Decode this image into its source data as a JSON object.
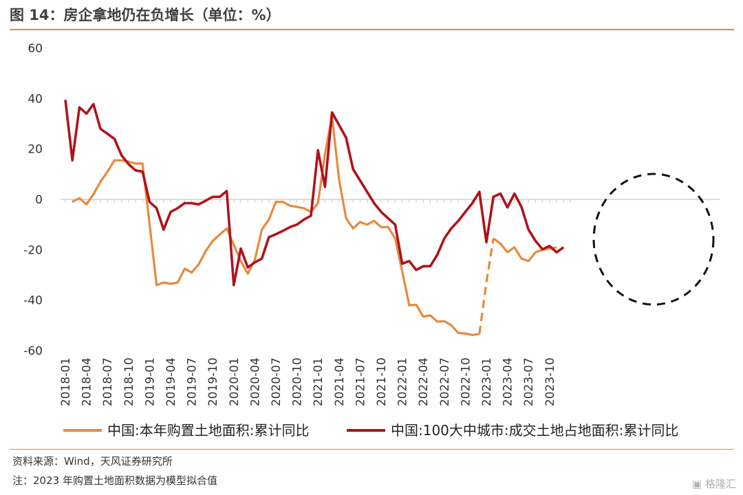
{
  "header": {
    "title": "图 14：房企拿地仍在负增长（单位：%）"
  },
  "footer": {
    "source": "资料来源：Wind，天风证券研究所",
    "note": "注：2023 年购置土地面积数据为模型拟合值"
  },
  "watermark": {
    "text": "格隆汇"
  },
  "colors": {
    "series1": "#e8893d",
    "series2": "#b0121b",
    "accent": "#e8862e",
    "circle": "#111111"
  },
  "chart_data": {
    "type": "line",
    "title": "",
    "xlabel": "",
    "ylabel": "",
    "ylim": [
      -60,
      60
    ],
    "yticks": [
      60,
      40,
      20,
      0,
      -20,
      -40,
      -60
    ],
    "x_start": "2018-01",
    "x_tick_labels": [
      "2018-01",
      "2018-04",
      "2018-07",
      "2018-10",
      "2019-01",
      "2019-04",
      "2019-07",
      "2019-10",
      "2020-01",
      "2020-04",
      "2020-07",
      "2020-10",
      "2021-01",
      "2021-04",
      "2021-07",
      "2021-10",
      "2022-01",
      "2022-04",
      "2022-07",
      "2022-10",
      "2023-01",
      "2023-04",
      "2023-07",
      "2023-10"
    ],
    "grid": false,
    "legend_position": "bottom",
    "annotation": "dashed circle around 2023 data",
    "series": [
      {
        "name": "中国:本年购置土地面积:累计同比",
        "color": "#e8893d",
        "dashed_segment": [
          "2022-12",
          "2023-02"
        ],
        "points": [
          [
            "2018-02",
            -1
          ],
          [
            "2018-03",
            0.5
          ],
          [
            "2018-04",
            -2
          ],
          [
            "2018-05",
            2
          ],
          [
            "2018-06",
            7
          ],
          [
            "2018-07",
            11
          ],
          [
            "2018-08",
            15.5
          ],
          [
            "2018-09",
            15.5
          ],
          [
            "2018-10",
            15
          ],
          [
            "2018-11",
            14.2
          ],
          [
            "2018-12",
            14.2
          ],
          [
            "2019-02",
            -34
          ],
          [
            "2019-03",
            -33
          ],
          [
            "2019-04",
            -33.5
          ],
          [
            "2019-05",
            -33
          ],
          [
            "2019-06",
            -27.5
          ],
          [
            "2019-07",
            -29
          ],
          [
            "2019-08",
            -25.8
          ],
          [
            "2019-09",
            -20.5
          ],
          [
            "2019-10",
            -16.5
          ],
          [
            "2019-11",
            -14
          ],
          [
            "2019-12",
            -11.5
          ],
          [
            "2020-02",
            -24.5
          ],
          [
            "2020-03",
            -29.5
          ],
          [
            "2020-04",
            -24
          ],
          [
            "2020-05",
            -12
          ],
          [
            "2020-06",
            -8
          ],
          [
            "2020-07",
            -1
          ],
          [
            "2020-08",
            -1
          ],
          [
            "2020-09",
            -2.5
          ],
          [
            "2020-10",
            -3
          ],
          [
            "2020-11",
            -3.5
          ],
          [
            "2020-12",
            -5
          ],
          [
            "2021-01",
            -1.5
          ],
          [
            "2021-02",
            18
          ],
          [
            "2021-03",
            33
          ],
          [
            "2021-04",
            8
          ],
          [
            "2021-05",
            -7.5
          ],
          [
            "2021-06",
            -11.5
          ],
          [
            "2021-07",
            -9
          ],
          [
            "2021-08",
            -10
          ],
          [
            "2021-09",
            -8.5
          ],
          [
            "2021-10",
            -11
          ],
          [
            "2021-11",
            -11
          ],
          [
            "2021-12",
            -15.5
          ],
          [
            "2022-01",
            -28.5
          ],
          [
            "2022-02",
            -42
          ],
          [
            "2022-03",
            -41.8
          ],
          [
            "2022-04",
            -46.5
          ],
          [
            "2022-05",
            -46
          ],
          [
            "2022-06",
            -48.5
          ],
          [
            "2022-07",
            -48.3
          ],
          [
            "2022-08",
            -50
          ],
          [
            "2022-09",
            -53
          ],
          [
            "2022-10",
            -53.2
          ],
          [
            "2022-11",
            -53.8
          ],
          [
            "2022-12",
            -53.4
          ],
          [
            "2023-01",
            -33
          ],
          [
            "2023-02",
            -15.5
          ],
          [
            "2023-03",
            -17.5
          ],
          [
            "2023-04",
            -21
          ],
          [
            "2023-05",
            -19
          ],
          [
            "2023-06",
            -23.5
          ],
          [
            "2023-07",
            -24.5
          ],
          [
            "2023-08",
            -21
          ],
          [
            "2023-09",
            -20
          ],
          [
            "2023-10",
            -19.5
          ],
          [
            "2023-11",
            -19
          ]
        ]
      },
      {
        "name": "中国:100大中城市:成交土地占地面积:累计同比",
        "color": "#b0121b",
        "points": [
          [
            "2018-01",
            39.5
          ],
          [
            "2018-02",
            15.5
          ],
          [
            "2018-03",
            36.5
          ],
          [
            "2018-04",
            34
          ],
          [
            "2018-05",
            37.8
          ],
          [
            "2018-06",
            28
          ],
          [
            "2018-07",
            26
          ],
          [
            "2018-08",
            24
          ],
          [
            "2018-09",
            17.5
          ],
          [
            "2018-10",
            14
          ],
          [
            "2018-11",
            11.5
          ],
          [
            "2018-12",
            11
          ],
          [
            "2019-01",
            -1
          ],
          [
            "2019-02",
            -3.5
          ],
          [
            "2019-03",
            -12
          ],
          [
            "2019-04",
            -5
          ],
          [
            "2019-05",
            -3.5
          ],
          [
            "2019-06",
            -1.5
          ],
          [
            "2019-07",
            -1.5
          ],
          [
            "2019-08",
            -2
          ],
          [
            "2019-09",
            -0.5
          ],
          [
            "2019-10",
            1
          ],
          [
            "2019-11",
            1
          ],
          [
            "2019-12",
            3.3
          ],
          [
            "2020-01",
            -34
          ],
          [
            "2020-02",
            -19.5
          ],
          [
            "2020-03",
            -27
          ],
          [
            "2020-04",
            -25
          ],
          [
            "2020-05",
            -23.5
          ],
          [
            "2020-06",
            -15
          ],
          [
            "2020-07",
            -13.8
          ],
          [
            "2020-08",
            -12.5
          ],
          [
            "2020-09",
            -11
          ],
          [
            "2020-10",
            -10
          ],
          [
            "2020-11",
            -8
          ],
          [
            "2020-12",
            -6.5
          ],
          [
            "2021-01",
            19.5
          ],
          [
            "2021-02",
            5
          ],
          [
            "2021-03",
            34.5
          ],
          [
            "2021-04",
            29.5
          ],
          [
            "2021-05",
            24.5
          ],
          [
            "2021-06",
            12
          ],
          [
            "2021-07",
            7.5
          ],
          [
            "2021-08",
            3
          ],
          [
            "2021-09",
            -1.5
          ],
          [
            "2021-10",
            -5
          ],
          [
            "2021-11",
            -7.5
          ],
          [
            "2021-12",
            -10
          ],
          [
            "2022-01",
            -25.5
          ],
          [
            "2022-02",
            -24.5
          ],
          [
            "2022-03",
            -28
          ],
          [
            "2022-04",
            -26.5
          ],
          [
            "2022-05",
            -26.5
          ],
          [
            "2022-06",
            -22
          ],
          [
            "2022-07",
            -15.5
          ],
          [
            "2022-08",
            -11.5
          ],
          [
            "2022-09",
            -8.5
          ],
          [
            "2022-10",
            -5
          ],
          [
            "2022-11",
            -1.5
          ],
          [
            "2022-12",
            3
          ],
          [
            "2023-01",
            -17
          ],
          [
            "2023-02",
            1
          ],
          [
            "2023-03",
            2.3
          ],
          [
            "2023-04",
            -3.2
          ],
          [
            "2023-05",
            2.3
          ],
          [
            "2023-06",
            -3
          ],
          [
            "2023-07",
            -12
          ],
          [
            "2023-08",
            -16.5
          ],
          [
            "2023-09",
            -19.8
          ],
          [
            "2023-10",
            -18.5
          ],
          [
            "2023-11",
            -21
          ],
          [
            "2023-12",
            -19
          ]
        ]
      }
    ]
  }
}
